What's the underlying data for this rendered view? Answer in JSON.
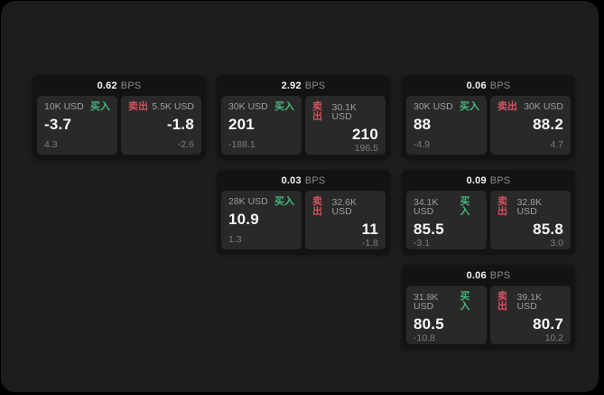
{
  "colors": {
    "buy_green": "#46b97c",
    "sell_red": "#d2525f",
    "page_bg": "#1d1d1d",
    "card_bg": "#131313",
    "panel_bg": "#292929"
  },
  "labels": {
    "bps_suffix": "BPS",
    "buy": "买入",
    "sell": "卖出"
  },
  "cards": [
    {
      "bps": "0.62",
      "buy_amount": "10K USD",
      "buy_value": "-3.7",
      "buy_delta": "4.3",
      "sell_amount": "5.5K USD",
      "sell_value": "-1.8",
      "sell_delta": "-2.6"
    },
    {
      "bps": "2.92",
      "buy_amount": "30K USD",
      "buy_value": "201",
      "buy_delta": "-188.1",
      "sell_amount": "30.1K USD",
      "sell_value": "210",
      "sell_delta": "196.5"
    },
    {
      "bps": "0.06",
      "buy_amount": "30K USD",
      "buy_value": "88",
      "buy_delta": "-4.9",
      "sell_amount": "30K USD",
      "sell_value": "88.2",
      "sell_delta": "4.7"
    },
    {
      "bps": "0.03",
      "buy_amount": "28K USD",
      "buy_value": "10.9",
      "buy_delta": "1.3",
      "sell_amount": "32.6K USD",
      "sell_value": "11",
      "sell_delta": "-1.8"
    },
    {
      "bps": "0.09",
      "buy_amount": "34.1K USD",
      "buy_value": "85.5",
      "buy_delta": "-3.1",
      "sell_amount": "32.8K USD",
      "sell_value": "85.8",
      "sell_delta": "3.0"
    },
    {
      "bps": "0.06",
      "buy_amount": "31.8K USD",
      "buy_value": "80.5",
      "buy_delta": "-10.8",
      "sell_amount": "39.1K USD",
      "sell_value": "80.7",
      "sell_delta": "10.2"
    }
  ]
}
